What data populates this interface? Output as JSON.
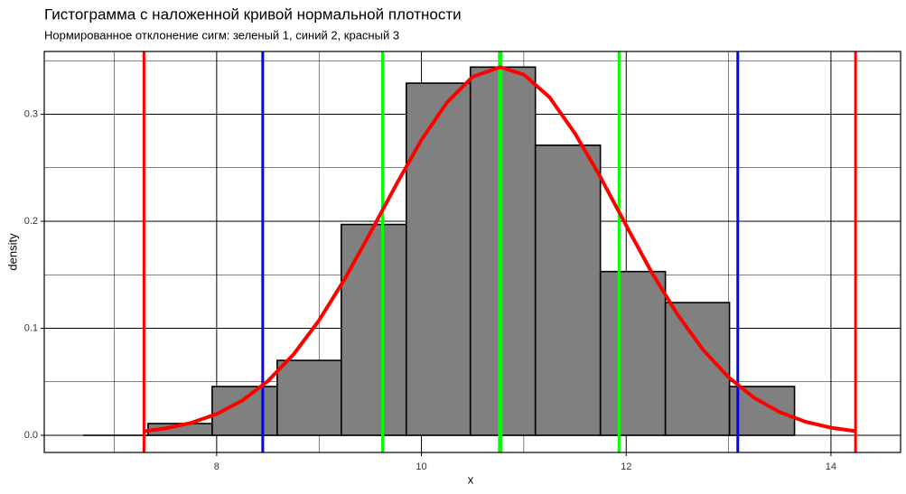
{
  "chart_data": {
    "type": "histogram",
    "title": "Гистограмма с наложенной кривой нормальной плотности",
    "subtitle": "Нормированное отклонение сигм: зеленый 1, синий 2, красный 3",
    "x_label": "x",
    "y_label": "density",
    "bins": [
      6.704,
      7.33,
      7.956,
      8.591,
      9.217,
      9.852,
      10.478,
      11.113,
      11.748,
      12.383,
      13.009,
      13.644
    ],
    "values": [
      0.0,
      0.011,
      0.0456,
      0.07,
      0.197,
      0.329,
      0.344,
      0.271,
      0.153,
      0.124,
      0.0456
    ],
    "color": "#808080",
    "edge_color": "#000000",
    "curve": {
      "type": "line",
      "color": "#ff0000",
      "x": [
        7.29,
        7.5,
        7.75,
        8.0,
        8.25,
        8.5,
        8.75,
        9.0,
        9.25,
        9.5,
        9.75,
        10.0,
        10.25,
        10.5,
        10.77,
        11.0,
        11.25,
        11.5,
        11.75,
        12.0,
        12.25,
        12.5,
        12.75,
        13.0,
        13.25,
        13.5,
        13.75,
        14.0,
        14.24
      ],
      "values": [
        0.0038,
        0.0065,
        0.0116,
        0.0199,
        0.0325,
        0.0507,
        0.0755,
        0.1074,
        0.1459,
        0.189,
        0.2336,
        0.276,
        0.311,
        0.335,
        0.344,
        0.337,
        0.316,
        0.282,
        0.241,
        0.196,
        0.152,
        0.113,
        0.08,
        0.0542,
        0.035,
        0.0216,
        0.0127,
        0.0071,
        0.0039
      ]
    },
    "vlines": [
      {
        "x": 7.29,
        "color": "#ff0000"
      },
      {
        "x": 8.45,
        "color": "#0000ff"
      },
      {
        "x": 9.62,
        "color": "#00ff00"
      },
      {
        "x": 10.77,
        "color": "#00ff00"
      },
      {
        "x": 11.93,
        "color": "#00ff00"
      },
      {
        "x": 13.09,
        "color": "#0000ff"
      },
      {
        "x": 14.24,
        "color": "#ff0000"
      }
    ],
    "xlim": [
      6.316,
      14.68
    ],
    "ylim": [
      -0.016,
      0.3586
    ],
    "xticks": [
      8,
      10,
      12,
      14
    ],
    "yticks": [
      {
        "value": 0,
        "label": "0.0"
      },
      0.1,
      0.2,
      0.3
    ],
    "x_minor_grid": [
      7,
      9,
      11,
      13
    ],
    "y_minor_grid": [
      0.05,
      0.15,
      0.25,
      0.35
    ],
    "grid": true
  }
}
